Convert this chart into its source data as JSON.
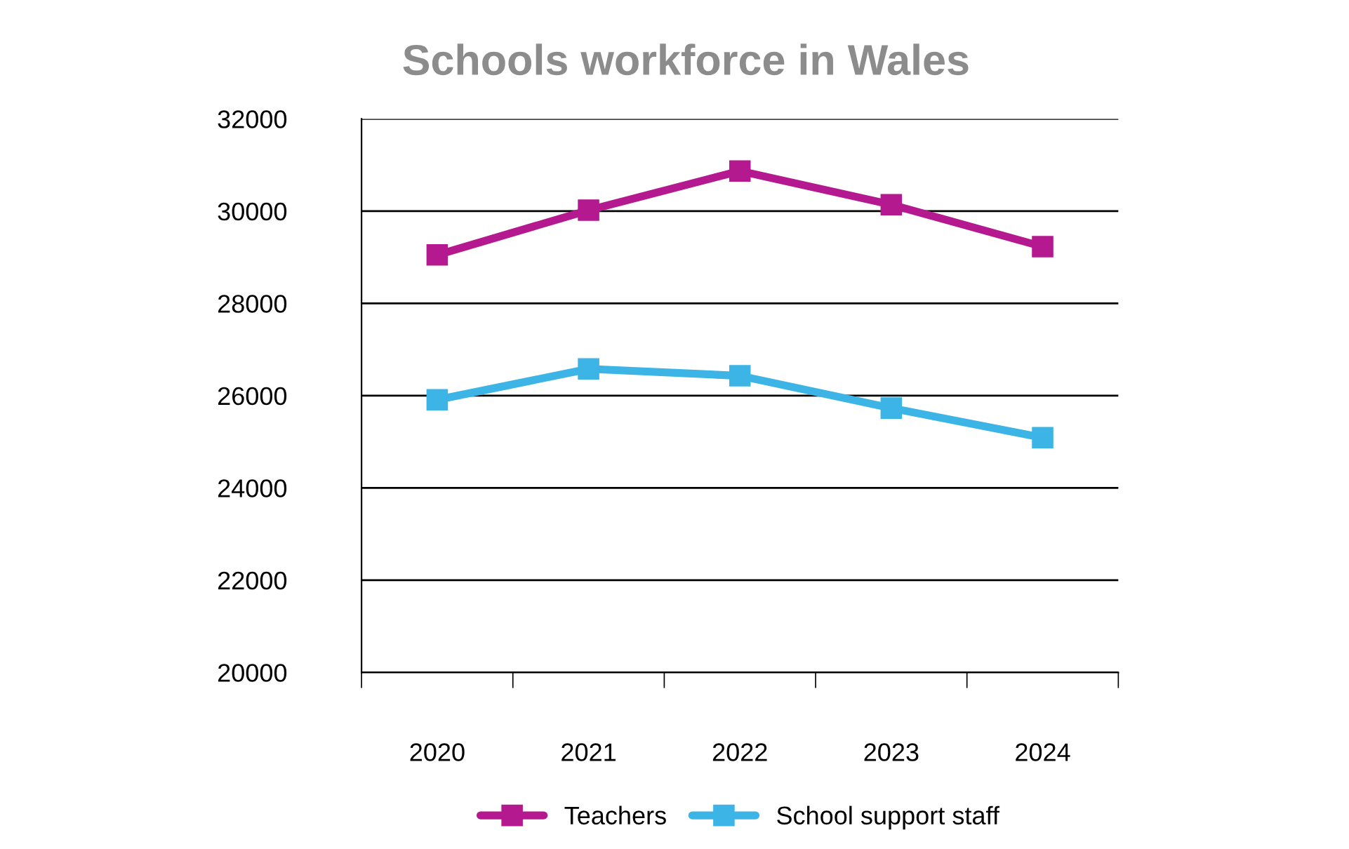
{
  "chart_data": {
    "type": "line",
    "title": "Schools workforce in Wales",
    "categories": [
      "2020",
      "2021",
      "2022",
      "2023",
      "2024"
    ],
    "series": [
      {
        "name": "Teachers",
        "color": "#b5198f",
        "values": [
          29050,
          30020,
          30870,
          30140,
          29230
        ]
      },
      {
        "name": "School support staff",
        "color": "#3cb4e6",
        "values": [
          25910,
          26580,
          26430,
          25730,
          25090
        ]
      }
    ],
    "ylim": [
      20000,
      32000
    ],
    "yticks": [
      20000,
      22000,
      24000,
      26000,
      28000,
      30000,
      32000
    ],
    "grid": "y",
    "legend": "bottom",
    "marker": "square",
    "line_style": "solid"
  }
}
